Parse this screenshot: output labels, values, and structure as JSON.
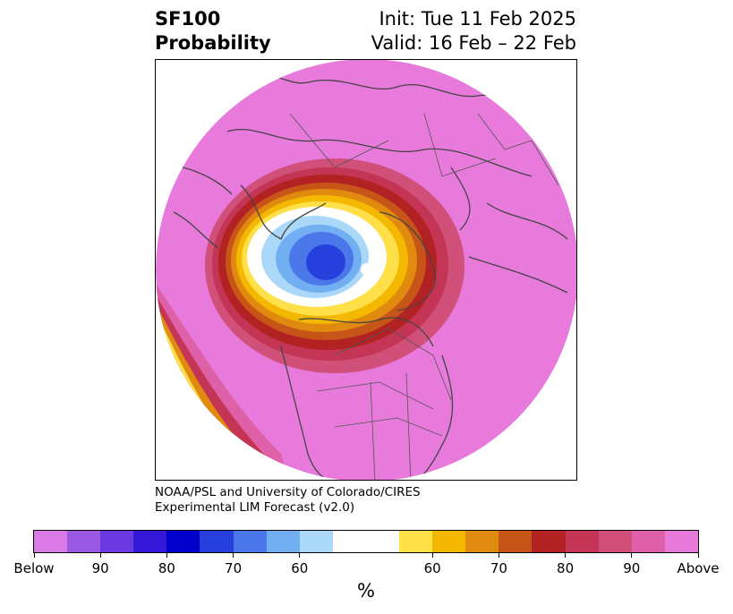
{
  "header": {
    "product": "SF100",
    "subtitle": "Probability",
    "init": "Init: Tue 11 Feb 2025",
    "valid": "Valid: 16 Feb – 22 Feb"
  },
  "credit": {
    "line1": "NOAA/PSL and University of Colorado/CIRES",
    "line2": "Experimental LIM Forecast (v2.0)"
  },
  "colorbar": {
    "unit": "%",
    "colors": [
      "#d97ae6",
      "#9b59e3",
      "#6a3ae0",
      "#3418d8",
      "#0000cc",
      "#2540dd",
      "#4a78ea",
      "#72aef2",
      "#aad8f8",
      "#ffffff",
      "#ffe048",
      "#f5b800",
      "#e08a10",
      "#c85518",
      "#b22222",
      "#c43555",
      "#d0507a",
      "#de60a8",
      "#e87adc"
    ],
    "widths": [
      1,
      1,
      1,
      1,
      1,
      1,
      1,
      1,
      1,
      2,
      1,
      1,
      1,
      1,
      1,
      1,
      1,
      1,
      1
    ],
    "ticks": [
      {
        "label": "Below",
        "boundary": 0
      },
      {
        "label": "90",
        "boundary": 2
      },
      {
        "label": "80",
        "boundary": 4
      },
      {
        "label": "70",
        "boundary": 6
      },
      {
        "label": "60",
        "boundary": 8
      },
      {
        "label": "60",
        "boundary": 12
      },
      {
        "label": "70",
        "boundary": 14
      },
      {
        "label": "80",
        "boundary": 16
      },
      {
        "label": "90",
        "boundary": 18
      },
      {
        "label": "Above",
        "boundary": 20
      }
    ]
  },
  "map": {
    "background_category": "Above",
    "projection": "north-polar-stereographic"
  }
}
